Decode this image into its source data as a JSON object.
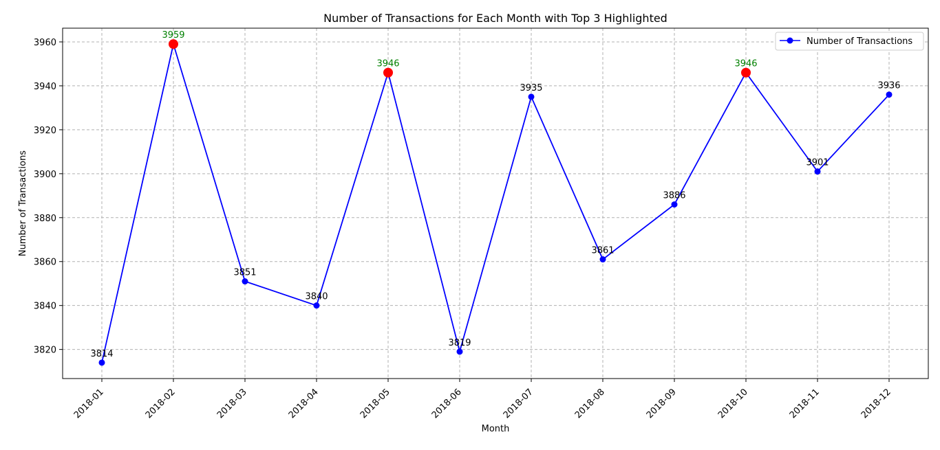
{
  "chart_data": {
    "type": "line",
    "title": "Number of Transactions for Each Month with Top 3 Highlighted",
    "xlabel": "Month",
    "ylabel": "Number of Transactions",
    "categories": [
      "2018-01",
      "2018-02",
      "2018-03",
      "2018-04",
      "2018-05",
      "2018-06",
      "2018-07",
      "2018-08",
      "2018-09",
      "2018-10",
      "2018-11",
      "2018-12"
    ],
    "series": [
      {
        "name": "Number of Transactions",
        "values": [
          3814,
          3959,
          3851,
          3840,
          3946,
          3819,
          3935,
          3861,
          3886,
          3946,
          3901,
          3936
        ],
        "color": "#0000ff"
      }
    ],
    "highlighted_categories": [
      "2018-02",
      "2018-05",
      "2018-10"
    ],
    "highlight_color": "#ff0000",
    "highlight_label_color": "#008000",
    "data_labels": [
      "3814",
      "3959",
      "3851",
      "3840",
      "3946",
      "3819",
      "3935",
      "3861",
      "3886",
      "3946",
      "3901",
      "3936"
    ],
    "yticks": [
      3820,
      3840,
      3860,
      3880,
      3900,
      3920,
      3940,
      3960
    ],
    "ytick_labels": [
      "3820",
      "3840",
      "3860",
      "3880",
      "3900",
      "3920",
      "3940",
      "3960"
    ],
    "ylim": [
      3806.75,
      3966.25
    ],
    "grid": true,
    "legend_position": "top-right"
  }
}
